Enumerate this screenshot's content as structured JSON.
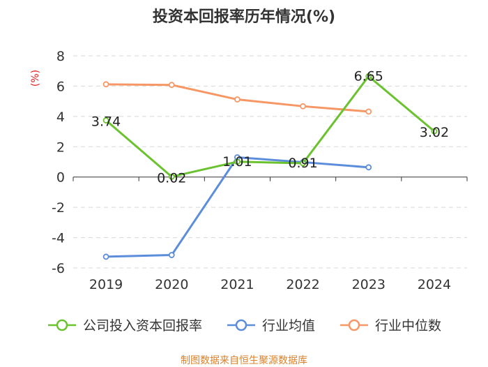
{
  "chart_data": {
    "type": "line",
    "title": "投资本回报率历年情况(%)",
    "ylabel": "(%)",
    "categories": [
      "2019",
      "2020",
      "2021",
      "2022",
      "2023",
      "2024"
    ],
    "ylim": [
      -6,
      8
    ],
    "yticks": [
      8,
      6,
      4,
      2,
      0,
      -2,
      -4,
      -6
    ],
    "grid": true,
    "legend_position": "bottom",
    "series": [
      {
        "name": "公司投入资本回报率",
        "color": "#6bc22f",
        "values": [
          3.74,
          0.02,
          1.01,
          0.91,
          6.65,
          3.02
        ],
        "labels": [
          "3.74",
          "0.02",
          "1.01",
          "0.91",
          "6.65",
          "3.02"
        ]
      },
      {
        "name": "行业均值",
        "color": "#5b8ddb",
        "values": [
          -5.26,
          -5.15,
          1.3,
          0.98,
          0.64,
          null
        ]
      },
      {
        "name": "行业中位数",
        "color": "#f79765",
        "values": [
          6.12,
          6.08,
          5.12,
          4.67,
          4.32,
          null
        ]
      }
    ]
  },
  "source": "制图数据来自恒生聚源数据库"
}
